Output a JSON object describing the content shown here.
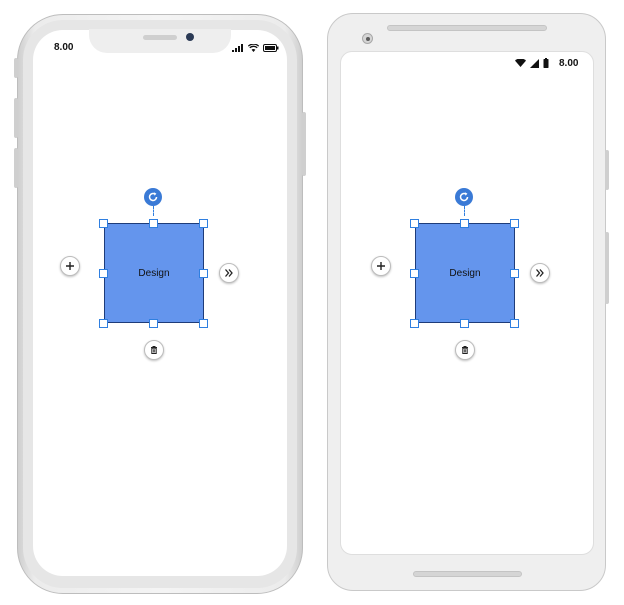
{
  "ios_phone": {
    "time": "8.00",
    "node_label": "Design"
  },
  "android_phone": {
    "time": "8.00",
    "node_label": "Design"
  },
  "colors": {
    "node_fill": "#6495ED",
    "handle_stroke": "#2F7FE0",
    "rotate_fill": "#3A7AD6"
  },
  "icons": {
    "add": "plus-icon",
    "more": "double-chevron-right-icon",
    "delete": "trash-icon",
    "rotate": "rotate-icon"
  }
}
